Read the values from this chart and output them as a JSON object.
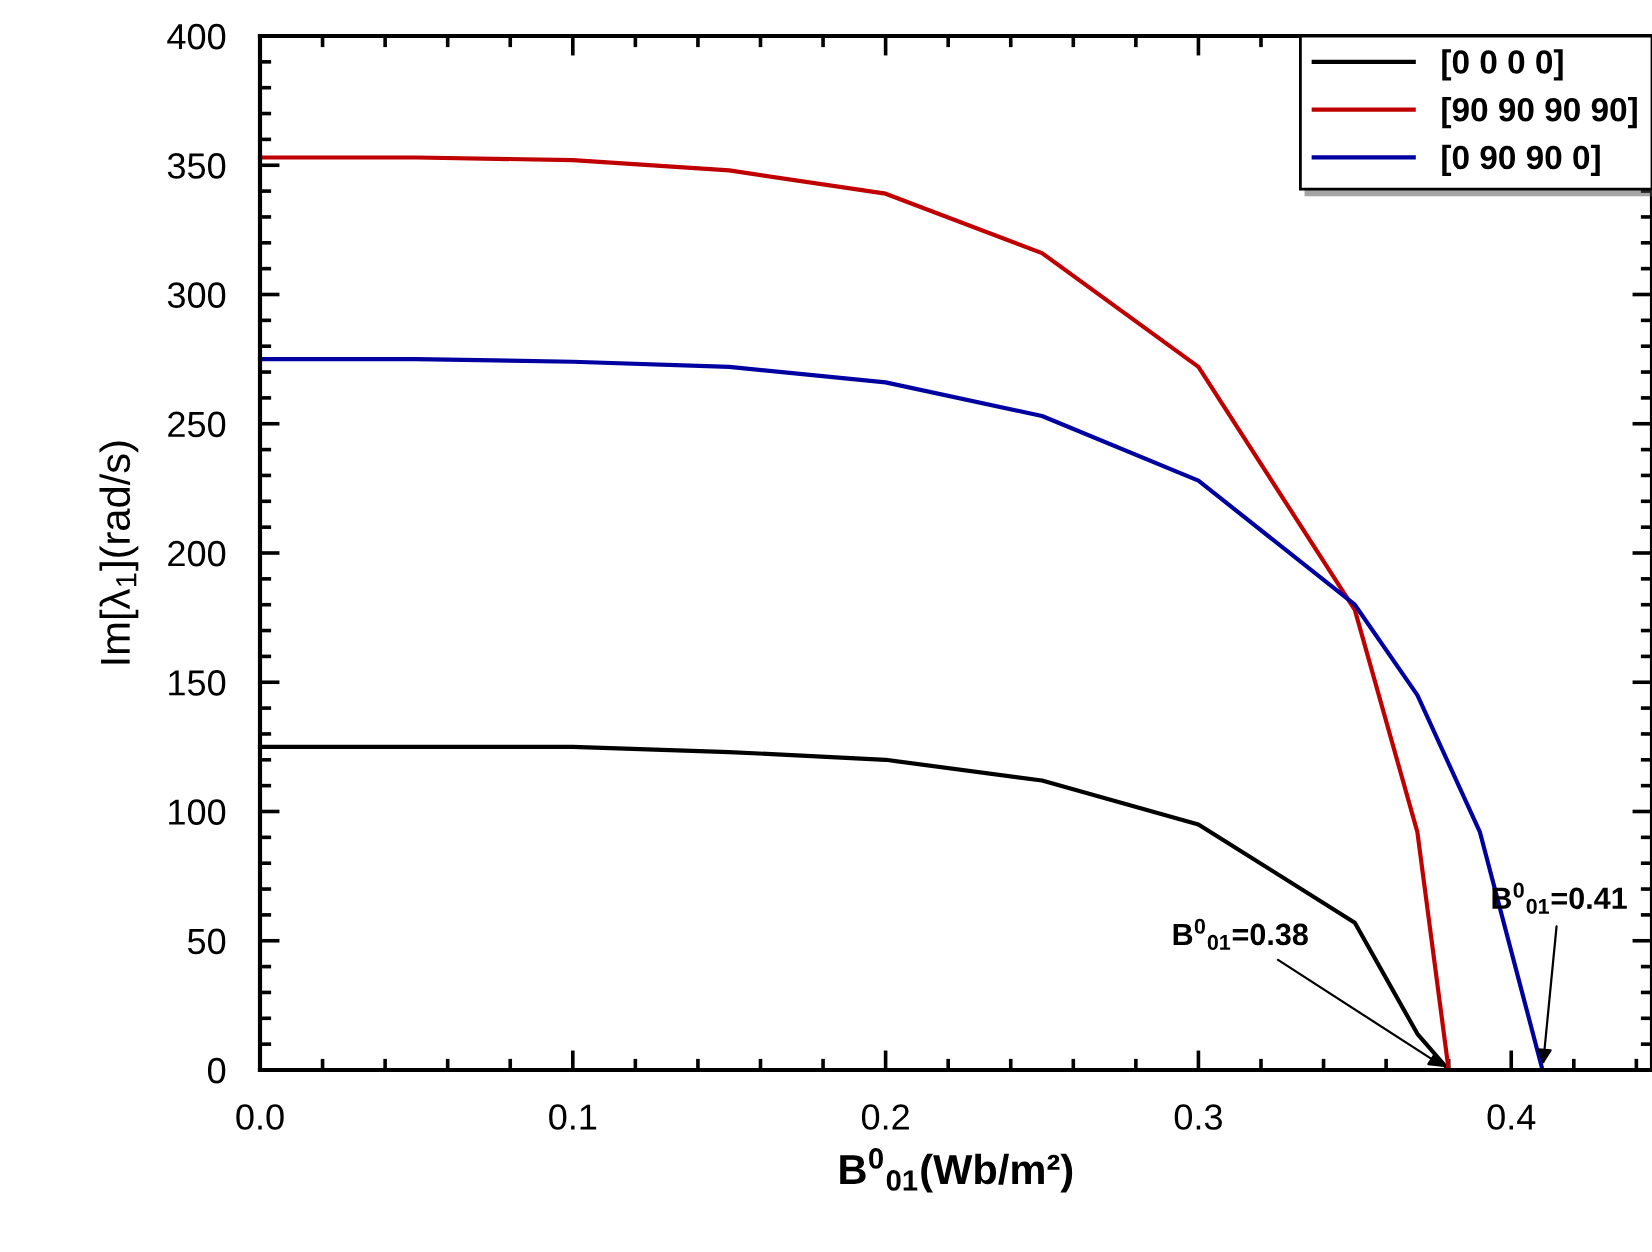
{
  "chart_data": {
    "type": "line",
    "xlabel": "B$^{0}$$_{01}$(Wb/m²)",
    "ylabel": "Im[λ$_{1}$](rad/s)",
    "series": [
      {
        "name": "[0 0 0 0]",
        "color": "#000000",
        "x": [
          0,
          0.05,
          0.1,
          0.15,
          0.2,
          0.25,
          0.3,
          0.35,
          0.37,
          0.38,
          0.445
        ],
        "values": [
          125,
          125,
          125,
          123,
          120,
          112,
          95,
          57,
          14,
          0,
          0
        ]
      },
      {
        "name": "[90 90 90 90]",
        "color": "#c00000",
        "x": [
          0,
          0.05,
          0.1,
          0.15,
          0.2,
          0.25,
          0.3,
          0.35,
          0.37,
          0.38,
          0.445
        ],
        "values": [
          353,
          353,
          352,
          348,
          339,
          316,
          272,
          178,
          92,
          0,
          0
        ]
      },
      {
        "name": "[0 90 90 0]",
        "color": "#0000a0",
        "x": [
          0,
          0.05,
          0.1,
          0.15,
          0.2,
          0.25,
          0.3,
          0.35,
          0.37,
          0.39,
          0.41,
          0.445
        ],
        "values": [
          275,
          275,
          274,
          272,
          266,
          253,
          228,
          180,
          145,
          92,
          0,
          0
        ]
      }
    ],
    "annotations": [
      {
        "text": "B$^{0}$$_{01}$=0.38",
        "x": 0.38,
        "y": 0
      },
      {
        "text": "B$^{0}$$_{01}$=0.41",
        "x": 0.41,
        "y": 0
      }
    ],
    "xlim": [
      0,
      0.445
    ],
    "xticks": [
      {
        "value": 0,
        "label": "0.0"
      },
      0.1,
      0.2,
      0.3,
      0.4
    ],
    "ylim": [
      0,
      400
    ],
    "yticks": [
      0,
      50,
      100,
      150,
      200,
      250,
      300,
      350,
      400
    ],
    "grid": false,
    "legend": "top right",
    "marker": "none",
    "line_style": "solid"
  }
}
